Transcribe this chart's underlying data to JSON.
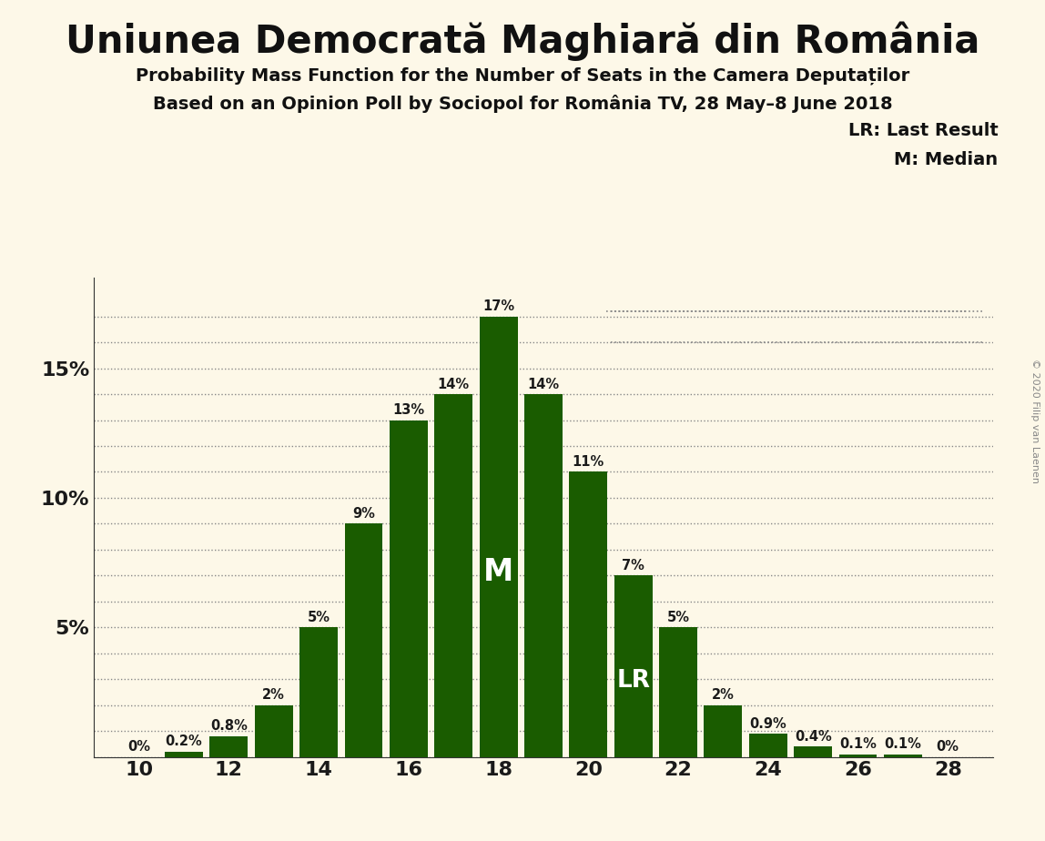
{
  "title": "Uniunea Democrată Maghiară din România",
  "subtitle1": "Probability Mass Function for the Number of Seats in the Camera Deputaților",
  "subtitle2": "Based on an Opinion Poll by Sociopol for România TV, 28 May–8 June 2018",
  "copyright": "© 2020 Filip van Laenen",
  "seats": [
    10,
    11,
    12,
    13,
    14,
    15,
    16,
    17,
    18,
    19,
    20,
    21,
    22,
    23,
    24,
    25,
    26,
    27,
    28
  ],
  "probabilities": [
    0.0,
    0.2,
    0.8,
    2.0,
    5.0,
    9.0,
    13.0,
    14.0,
    17.0,
    14.0,
    11.0,
    7.0,
    5.0,
    2.0,
    0.9,
    0.4,
    0.1,
    0.1,
    0.0
  ],
  "labels": [
    "0%",
    "0.2%",
    "0.8%",
    "2%",
    "5%",
    "9%",
    "13%",
    "14%",
    "17%",
    "14%",
    "11%",
    "7%",
    "5%",
    "2%",
    "0.9%",
    "0.4%",
    "0.1%",
    "0.1%",
    "0%"
  ],
  "bar_color": "#1a5c00",
  "background_color": "#fdf8e8",
  "median_seat": 18,
  "lr_seat": 21,
  "lr_label": "LR",
  "median_label": "M",
  "legend_lr": "LR: Last Result",
  "legend_m": "M: Median",
  "yticks": [
    0,
    5,
    10,
    15
  ],
  "ytick_labels": [
    "",
    "5%",
    "10%",
    "15%"
  ],
  "xticks": [
    10,
    12,
    14,
    16,
    18,
    20,
    22,
    24,
    26,
    28
  ],
  "xlim": [
    9.0,
    29.0
  ],
  "ylim": [
    0,
    18.5
  ],
  "extra_gridlines": [
    1,
    2,
    3,
    4,
    6,
    7,
    8,
    9,
    11,
    12,
    13,
    14,
    16,
    17
  ]
}
